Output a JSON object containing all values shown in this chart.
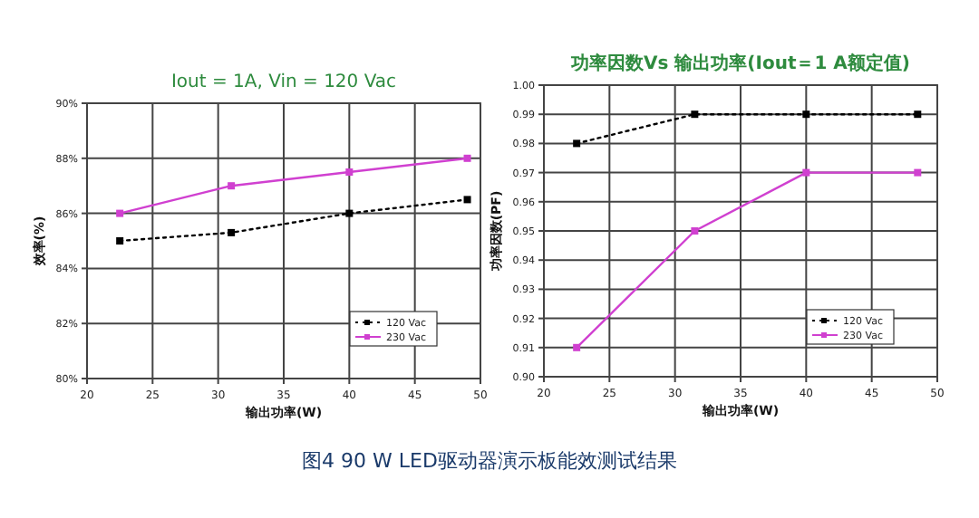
{
  "chart_data": [
    {
      "type": "line",
      "title": "Iout = 1A, Vin = 120 Vac",
      "xlabel": "输出功率(W)",
      "ylabel": "效率(%)",
      "x": [
        22.5,
        31,
        40,
        49
      ],
      "series": [
        {
          "name": "120 Vac",
          "color": "#000000",
          "values": [
            85,
            85.3,
            86,
            86.5
          ],
          "line_style": "dotted",
          "marker": "square"
        },
        {
          "name": "230 Vac",
          "color": "#d040d0",
          "values": [
            86,
            87,
            87.5,
            88
          ],
          "line_style": "solid",
          "marker": "square"
        }
      ],
      "xlim": [
        20,
        50
      ],
      "xticks": [
        20,
        25,
        30,
        35,
        40,
        45,
        50
      ],
      "ylim": [
        80,
        90
      ],
      "yticks": [
        {
          "value": 80,
          "label": "80%"
        },
        {
          "value": 82,
          "label": "82%"
        },
        {
          "value": 84,
          "label": "84%"
        },
        {
          "value": 86,
          "label": "86%"
        },
        {
          "value": 88,
          "label": "88%"
        },
        {
          "value": 90,
          "label": "90%"
        }
      ],
      "grid": true,
      "legend": "bottom right",
      "annotations": [
        "图4 90 W LED驱动器演示板能效测试结果"
      ]
    },
    {
      "type": "line",
      "title": "功率因数Vs 输出功率(Iout＝1 A额定值)",
      "xlabel": "输出功率(W)",
      "ylabel": "功率因数(PF)",
      "x": [
        22.5,
        31.5,
        40,
        48.5
      ],
      "series": [
        {
          "name": "120 Vac",
          "color": "#000000",
          "values": [
            0.98,
            0.99,
            0.99,
            0.99
          ],
          "line_style": "dotted",
          "marker": "square"
        },
        {
          "name": "230 Vac",
          "color": "#d040d0",
          "values": [
            0.91,
            0.95,
            0.97,
            0.97
          ],
          "line_style": "solid",
          "marker": "square"
        }
      ],
      "xlim": [
        20,
        50
      ],
      "xticks": [
        20,
        25,
        30,
        35,
        40,
        45,
        50
      ],
      "ylim": [
        0.9,
        1.0
      ],
      "yticks": [
        {
          "value": 0.9,
          "label": "0.90"
        },
        0.91,
        0.92,
        0.93,
        0.94,
        0.95,
        0.96,
        0.97,
        0.98,
        0.99,
        {
          "value": 1.0,
          "label": "1.00"
        }
      ],
      "grid": true,
      "legend": "bottom right"
    }
  ]
}
